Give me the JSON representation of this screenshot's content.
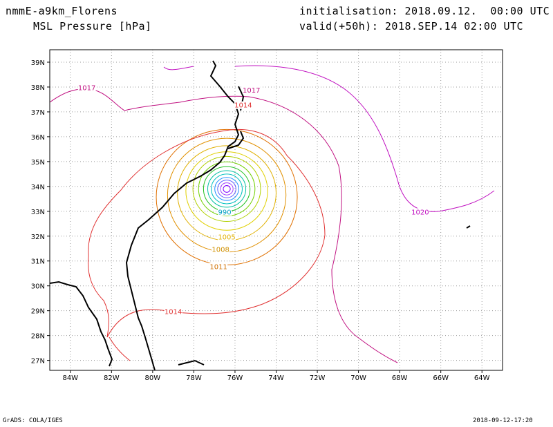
{
  "header": {
    "model": "nmmE-a9km_Florens",
    "field": "MSL Pressure [hPa]",
    "init": "initialisation: 2018.09.12.  00:00 UTC",
    "valid": "valid(+50h): 2018.SEP.14 02:00 UTC"
  },
  "footer": {
    "credit": "GrADS: COLA/IGES",
    "stamp": "2018-09-12-17:20"
  },
  "chart_data": {
    "type": "contour",
    "variable": "MSL Pressure [hPa]",
    "projection": "lat-lon",
    "xlim": [
      -85,
      -63
    ],
    "ylim": [
      26.6,
      39.5
    ],
    "grid": true,
    "x_ticks": [
      -84,
      -82,
      -80,
      -78,
      -76,
      -74,
      -72,
      -70,
      -68,
      -66,
      -64
    ],
    "y_ticks": [
      27,
      28,
      29,
      30,
      31,
      32,
      33,
      34,
      35,
      36,
      37,
      38,
      39
    ],
    "x_tick_labels": [
      "84W",
      "82W",
      "80W",
      "78W",
      "76W",
      "74W",
      "72W",
      "70W",
      "68W",
      "66W",
      "64W"
    ],
    "y_tick_labels": [
      "27N",
      "28N",
      "29N",
      "30N",
      "31N",
      "32N",
      "33N",
      "34N",
      "35N",
      "36N",
      "37N",
      "38N",
      "39N"
    ],
    "low_center": {
      "lon": -76.4,
      "lat": 33.9
    },
    "contour_levels": [
      975,
      978,
      981,
      984,
      987,
      990,
      993,
      996,
      999,
      1002,
      1005,
      1008,
      1011,
      1014,
      1017,
      1020
    ],
    "contour_labels": [
      {
        "value": "990",
        "lon": -76.5,
        "lat": 32.9,
        "color": "#00a0c0"
      },
      {
        "value": "1005",
        "lon": -76.4,
        "lat": 31.9,
        "color": "#e0b000"
      },
      {
        "value": "1008",
        "lon": -76.7,
        "lat": 31.4,
        "color": "#d09000"
      },
      {
        "value": "1011",
        "lon": -76.8,
        "lat": 30.7,
        "color": "#d07000"
      },
      {
        "value": "1014",
        "lon": -79.0,
        "lat": 28.9,
        "color": "#e03030"
      },
      {
        "value": "1014",
        "lon": -75.6,
        "lat": 37.2,
        "color": "#e03030"
      },
      {
        "value": "1017",
        "lon": -83.2,
        "lat": 37.9,
        "color": "#c01080"
      },
      {
        "value": "1017",
        "lon": -75.2,
        "lat": 37.8,
        "color": "#c01080"
      },
      {
        "value": "1020",
        "lon": -67.0,
        "lat": 32.9,
        "color": "#c010c0"
      }
    ],
    "colors": {
      "975": "#8000ff",
      "978": "#a040ff",
      "981": "#6060ff",
      "984": "#2090ff",
      "987": "#00c0c0",
      "990": "#00c0a0",
      "993": "#20c020",
      "996": "#70d000",
      "999": "#b0d000",
      "1002": "#e0d000",
      "1005": "#e0b000",
      "1008": "#e09000",
      "1011": "#e07000",
      "1014": "#e03030",
      "1017": "#c01080",
      "1020": "#c010c0"
    }
  }
}
